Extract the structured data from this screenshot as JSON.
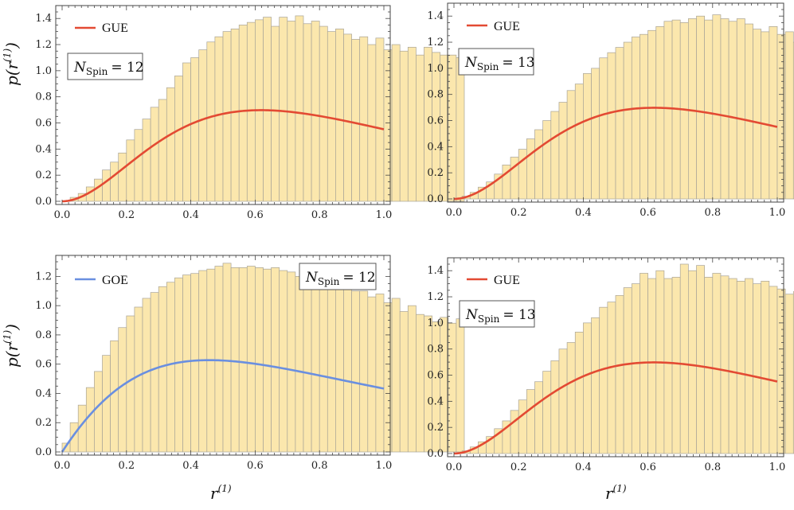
{
  "chart_data": [
    {
      "type": "bar",
      "panel": "top-left",
      "xlim": [
        0,
        1
      ],
      "ylim": [
        0,
        1.45
      ],
      "xticks": [
        "0.0",
        "0.2",
        "0.4",
        "0.6",
        "0.8",
        "1.0"
      ],
      "yticks": [
        "0.0",
        "0.2",
        "0.4",
        "0.6",
        "0.8",
        "1.0",
        "1.2",
        "1.4"
      ],
      "ylabel_main": "p",
      "ylabel_arg": "r",
      "ylabel_sup": "(1)",
      "xlabel_main": "",
      "xlabel_sup": "",
      "legend": {
        "name": "GUE",
        "color": "#e34a33",
        "placement": "top-left"
      },
      "label_box": {
        "symbol": "N",
        "sub": "Spin",
        "text": "= 12",
        "placement": "upper-left"
      },
      "curve": "gue",
      "bin_width": 0.025,
      "values": [
        0.004,
        0.03,
        0.06,
        0.11,
        0.17,
        0.24,
        0.3,
        0.37,
        0.47,
        0.55,
        0.63,
        0.72,
        0.78,
        0.87,
        0.96,
        1.06,
        1.1,
        1.16,
        1.22,
        1.26,
        1.3,
        1.32,
        1.35,
        1.37,
        1.39,
        1.41,
        1.34,
        1.41,
        1.38,
        1.42,
        1.36,
        1.38,
        1.34,
        1.3,
        1.32,
        1.28,
        1.24,
        1.26,
        1.2,
        1.25,
        1.16,
        1.2,
        1.15,
        1.18,
        1.12,
        1.18,
        1.14,
        1.12,
        1.12,
        1.1
      ]
    },
    {
      "type": "bar",
      "panel": "top-right",
      "xlim": [
        0,
        1
      ],
      "ylim": [
        0,
        1.45
      ],
      "xticks": [
        "0.0",
        "0.2",
        "0.4",
        "0.6",
        "0.8",
        "1.0"
      ],
      "yticks": [
        "0.0",
        "0.2",
        "0.4",
        "0.6",
        "0.8",
        "1.0",
        "1.2",
        "1.4"
      ],
      "ylabel_main": "",
      "ylabel_arg": "",
      "ylabel_sup": "",
      "xlabel_main": "",
      "xlabel_sup": "",
      "legend": {
        "name": "GUE",
        "color": "#e34a33",
        "placement": "top-left"
      },
      "label_box": {
        "symbol": "N",
        "sub": "Spin",
        "text": "= 13",
        "placement": "upper-left"
      },
      "curve": "gue",
      "bin_width": 0.025,
      "values": [
        0.004,
        0.02,
        0.05,
        0.09,
        0.13,
        0.19,
        0.26,
        0.32,
        0.38,
        0.46,
        0.53,
        0.6,
        0.67,
        0.74,
        0.83,
        0.88,
        0.96,
        1.0,
        1.08,
        1.12,
        1.16,
        1.2,
        1.24,
        1.26,
        1.29,
        1.32,
        1.36,
        1.37,
        1.35,
        1.38,
        1.4,
        1.37,
        1.41,
        1.38,
        1.36,
        1.38,
        1.34,
        1.3,
        1.28,
        1.32,
        1.26,
        1.28,
        1.2,
        1.25,
        1.22,
        1.18,
        1.2,
        1.16,
        1.14,
        1.1
      ]
    },
    {
      "type": "bar",
      "panel": "bottom-left",
      "xlim": [
        0,
        1
      ],
      "ylim": [
        0,
        1.3
      ],
      "xticks": [
        "0.0",
        "0.2",
        "0.4",
        "0.6",
        "0.8",
        "1.0"
      ],
      "yticks": [
        "0.0",
        "0.2",
        "0.4",
        "0.6",
        "0.8",
        "1.0",
        "1.2"
      ],
      "ylabel_main": "p",
      "ylabel_arg": "r",
      "ylabel_sup": "(1)",
      "xlabel_main": "r",
      "xlabel_sup": "(1)",
      "legend": {
        "name": "GOE",
        "color": "#6a8fe0",
        "placement": "top-left"
      },
      "label_box": {
        "symbol": "N",
        "sub": "Spin",
        "text": "= 12",
        "placement": "top-right"
      },
      "curve": "goe",
      "bin_width": 0.025,
      "values": [
        0.06,
        0.2,
        0.32,
        0.44,
        0.55,
        0.66,
        0.76,
        0.85,
        0.93,
        0.99,
        1.05,
        1.09,
        1.13,
        1.16,
        1.19,
        1.21,
        1.22,
        1.24,
        1.25,
        1.27,
        1.29,
        1.26,
        1.26,
        1.27,
        1.26,
        1.25,
        1.26,
        1.24,
        1.23,
        1.2,
        1.23,
        1.18,
        1.19,
        1.16,
        1.14,
        1.15,
        1.1,
        1.1,
        1.06,
        1.08,
        1.02,
        1.05,
        0.96,
        1.0,
        0.94,
        0.93,
        0.89,
        0.92,
        0.88,
        0.91
      ]
    },
    {
      "type": "bar",
      "panel": "bottom-right",
      "xlim": [
        0,
        1
      ],
      "ylim": [
        0,
        1.45
      ],
      "xticks": [
        "0.0",
        "0.2",
        "0.4",
        "0.6",
        "0.8",
        "1.0"
      ],
      "yticks": [
        "0.0",
        "0.2",
        "0.4",
        "0.6",
        "0.8",
        "1.0",
        "1.2",
        "1.4"
      ],
      "ylabel_main": "",
      "ylabel_arg": "",
      "ylabel_sup": "",
      "xlabel_main": "r",
      "xlabel_sup": "(1)",
      "legend": {
        "name": "GUE",
        "color": "#e34a33",
        "placement": "top-left"
      },
      "label_box": {
        "symbol": "N",
        "sub": "Spin",
        "text": "= 13",
        "placement": "upper-left"
      },
      "curve": "gue",
      "bin_width": 0.025,
      "values": [
        0.004,
        0.02,
        0.05,
        0.09,
        0.13,
        0.19,
        0.25,
        0.33,
        0.41,
        0.49,
        0.55,
        0.63,
        0.71,
        0.8,
        0.85,
        0.93,
        1.0,
        1.04,
        1.12,
        1.16,
        1.21,
        1.27,
        1.3,
        1.38,
        1.34,
        1.4,
        1.34,
        1.35,
        1.45,
        1.4,
        1.44,
        1.35,
        1.38,
        1.36,
        1.34,
        1.32,
        1.34,
        1.3,
        1.32,
        1.28,
        1.26,
        1.22,
        1.24,
        1.2,
        1.16,
        1.16,
        1.12,
        1.1,
        1.06,
        1.04
      ]
    }
  ]
}
